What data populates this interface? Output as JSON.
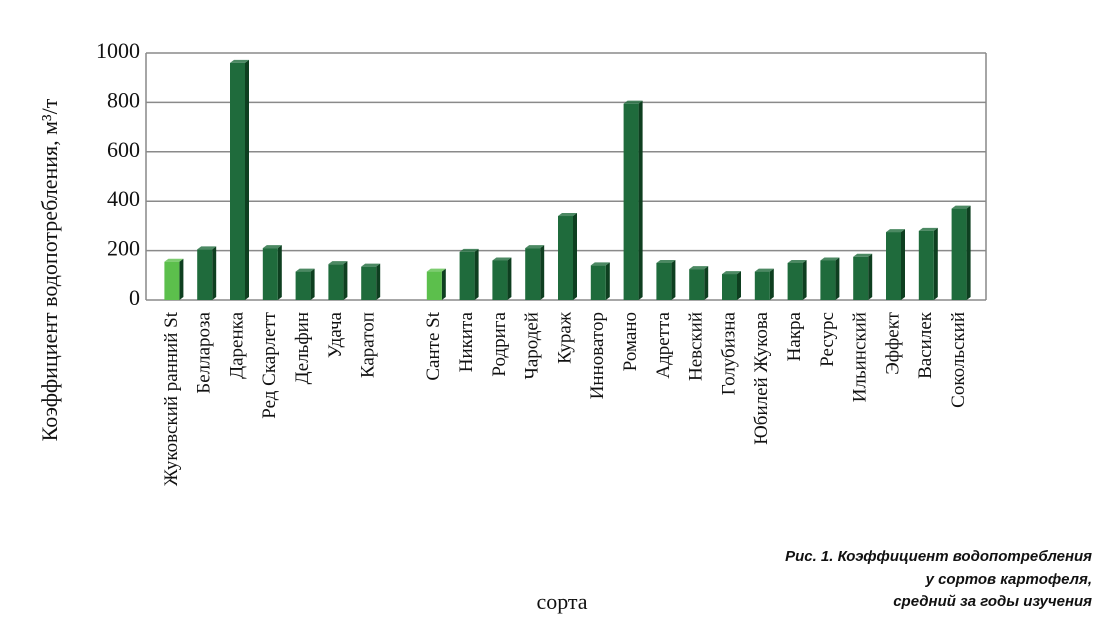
{
  "chart_data": {
    "type": "bar",
    "y_label": "Коэффициент водопотребления, м³/т",
    "x_label": "сорта",
    "caption": [
      "Рис. 1. Коэффициент водопотребления",
      "у сортов картофеля,",
      "средний за годы изучения"
    ],
    "categories": [
      "Жуковский ранний St",
      "Беллароза",
      "Даренка",
      "Ред Скарлетт",
      "Дельфин",
      "Удача",
      "Каратоп",
      null,
      "Санте St",
      "Никита",
      "Родрига",
      "Чародей",
      "Кураж",
      "Инноватор",
      "Романо",
      "Адретта",
      "Невский",
      "Голубизна",
      "Юбилей Жукова",
      "Накра",
      "Ресурс",
      "Ильинский",
      "Эффект",
      "Василек",
      "Сокольский"
    ],
    "values": [
      155,
      205,
      960,
      210,
      115,
      145,
      135,
      null,
      115,
      195,
      160,
      210,
      340,
      140,
      795,
      150,
      125,
      105,
      115,
      150,
      160,
      175,
      275,
      280,
      370
    ],
    "colors": [
      "#5cbf4c",
      "#1f6b3c",
      "#1f6b3c",
      "#1f6b3c",
      "#1f6b3c",
      "#1f6b3c",
      "#1f6b3c",
      null,
      "#5cbf4c",
      "#1f6b3c",
      "#1f6b3c",
      "#1f6b3c",
      "#1f6b3c",
      "#1f6b3c",
      "#1f6b3c",
      "#1f6b3c",
      "#1f6b3c",
      "#1f6b3c",
      "#1f6b3c",
      "#1f6b3c",
      "#1f6b3c",
      "#1f6b3c",
      "#1f6b3c",
      "#1f6b3c",
      "#1f6b3c"
    ],
    "ylim": [
      0,
      1000
    ],
    "yticks": [
      0,
      200,
      400,
      600,
      800,
      1000
    ],
    "grid": true
  }
}
